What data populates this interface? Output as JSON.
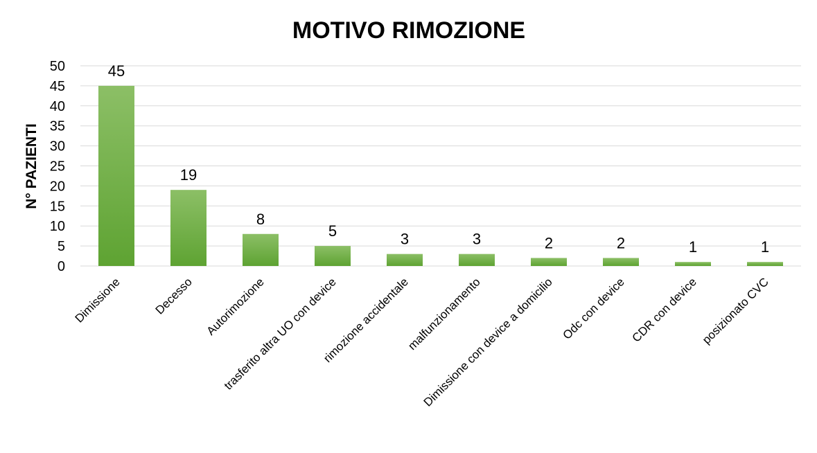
{
  "chart_data": {
    "type": "bar",
    "title": "MOTIVO RIMOZIONE",
    "xlabel": "",
    "ylabel": "N° PAZIENTI",
    "ylim": [
      0,
      50
    ],
    "yticks": [
      0,
      5,
      10,
      15,
      20,
      25,
      30,
      35,
      40,
      45,
      50
    ],
    "categories": [
      "Dimissione",
      "Decesso",
      "Autorimozione",
      "trasferito altra UO con device",
      "rimozione accidentale",
      "malfunzionamento",
      "Dimissione con device a domicilio",
      "Odc con device",
      "CDR con device",
      "posizionato CVC"
    ],
    "values": [
      45,
      19,
      8,
      5,
      3,
      3,
      2,
      2,
      1,
      1
    ],
    "grid": true,
    "legend": "none",
    "colors": {
      "bar_top": "#8cbf66",
      "bar_bottom": "#5ea332",
      "grid": "#d9d9d9"
    }
  }
}
